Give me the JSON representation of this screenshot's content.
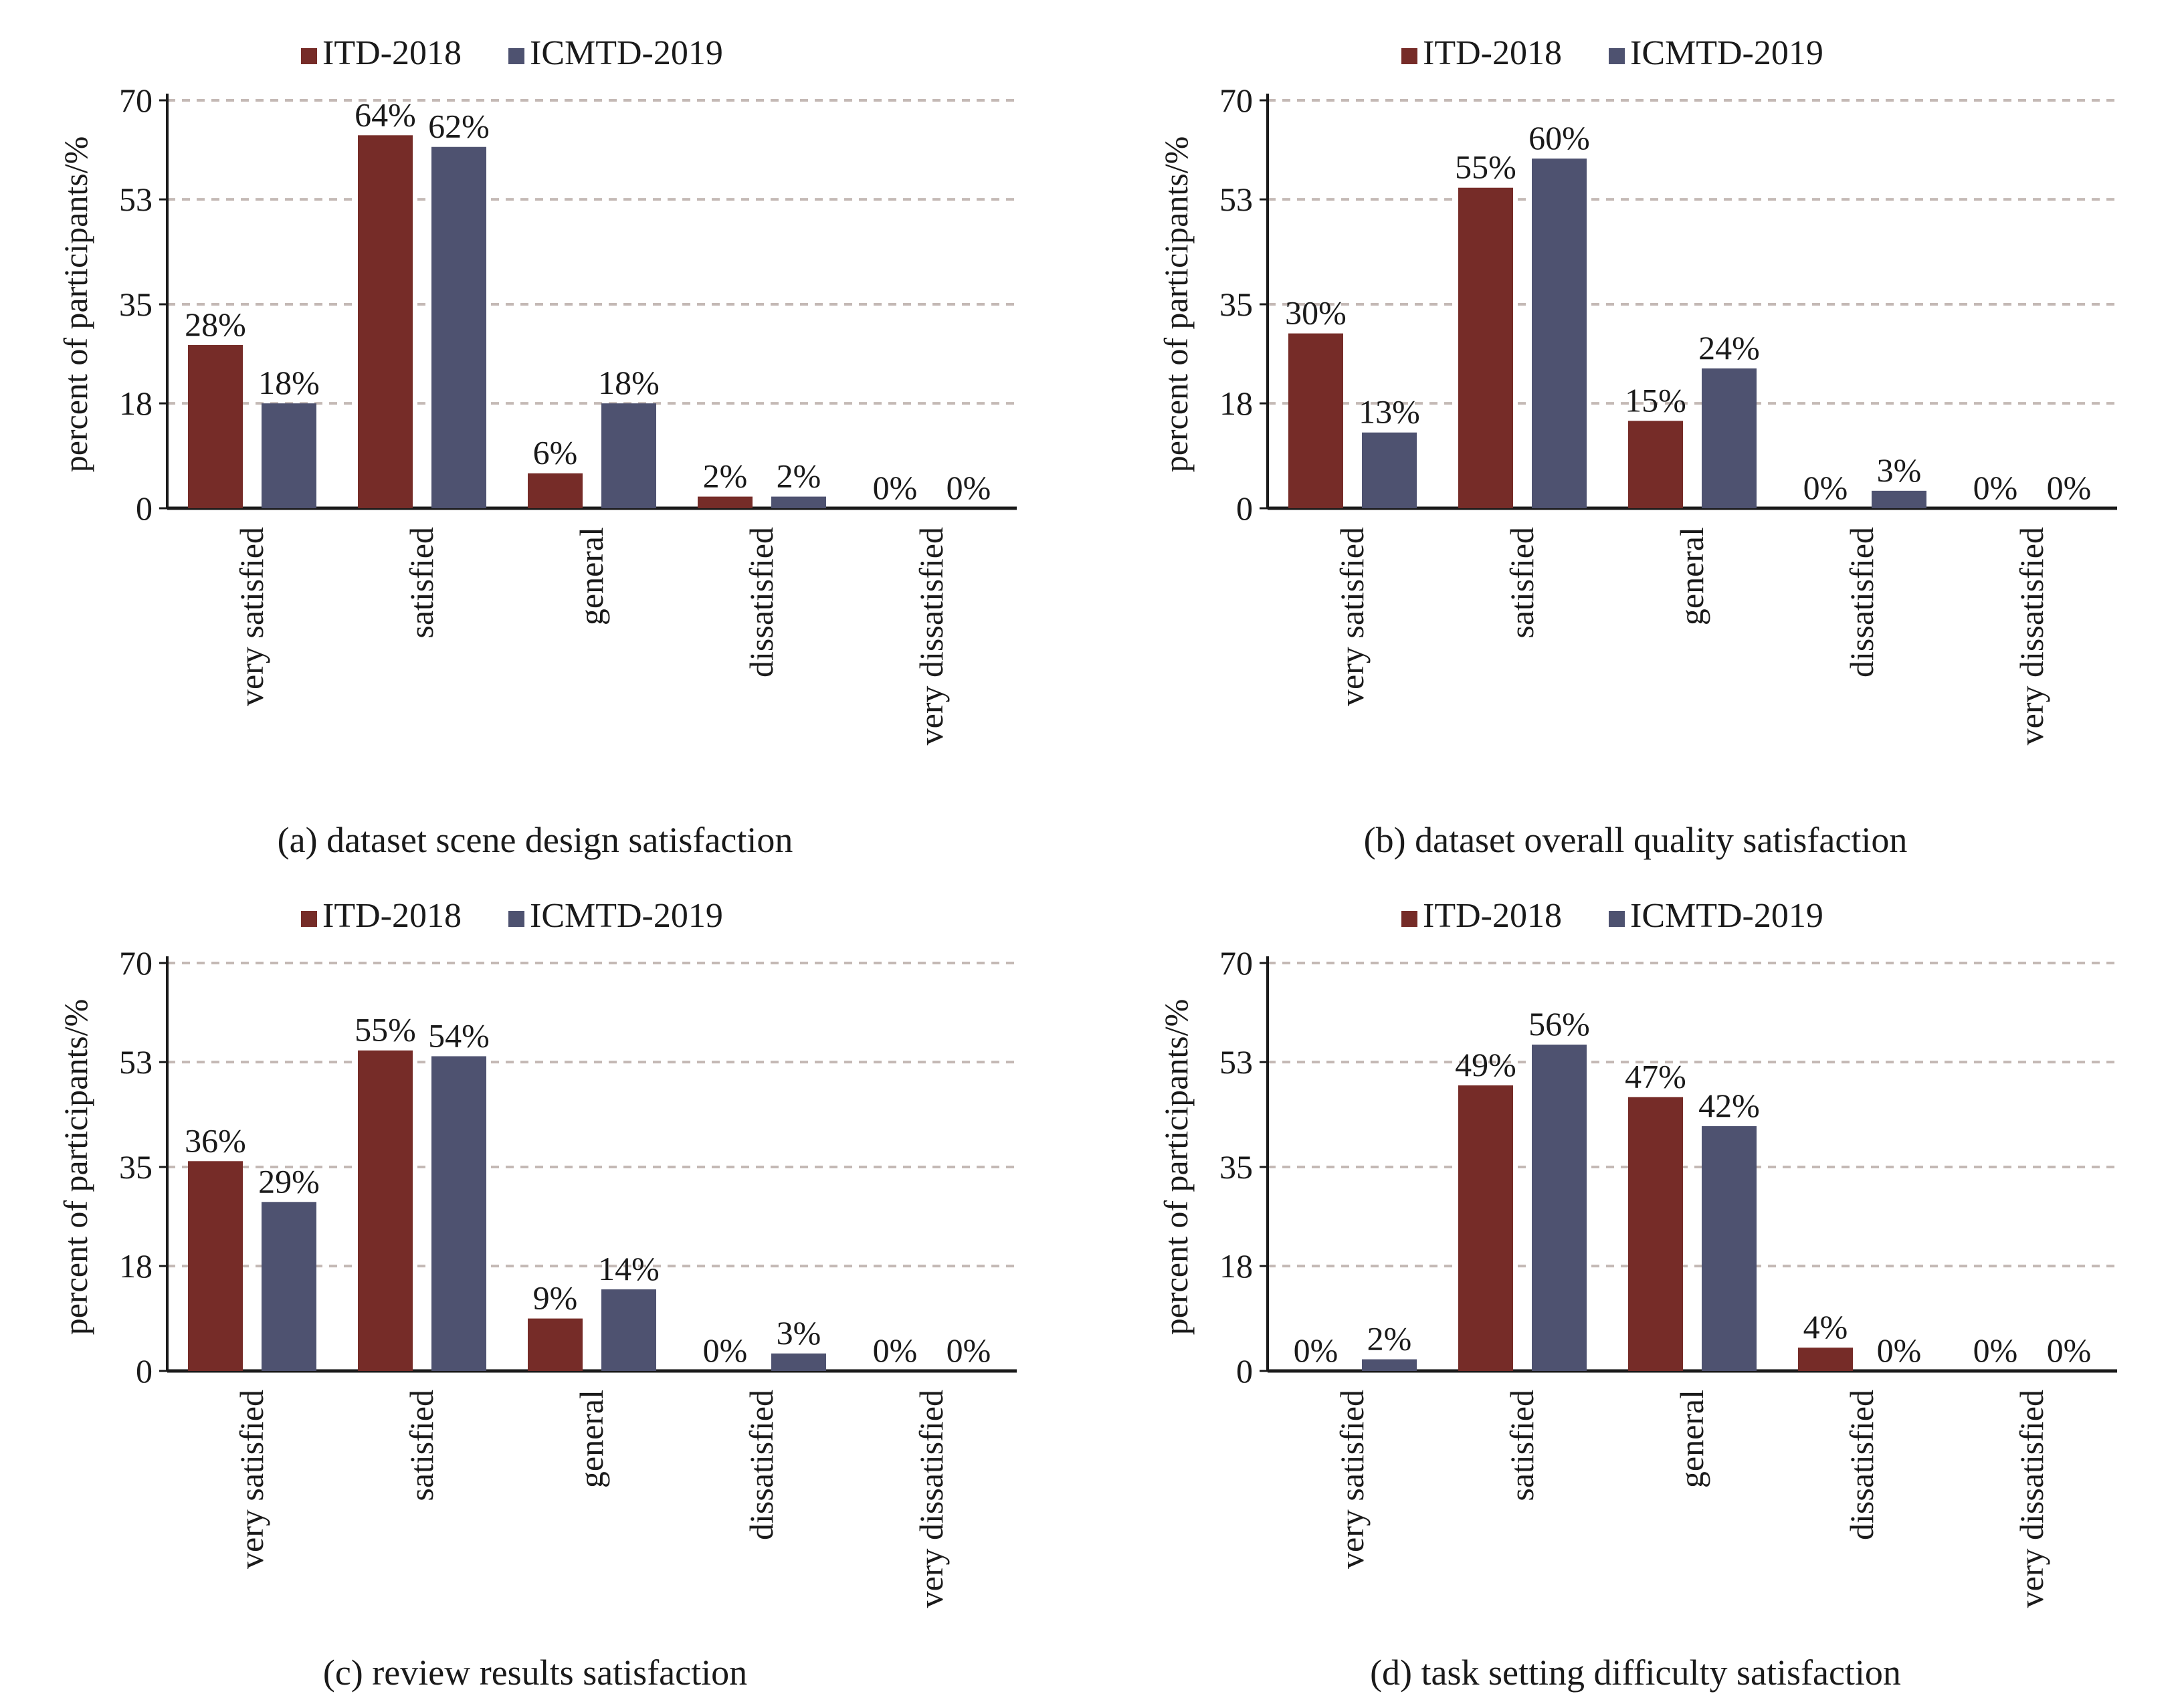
{
  "colors": {
    "itd": "#762c28",
    "icmtd": "#4e5270",
    "grid": "#c4b9b5",
    "axis": "#1a1a1a"
  },
  "legend_labels": [
    "ITD-2018",
    "ICMTD-2019"
  ],
  "chart_data": [
    {
      "type": "bar",
      "caption": "(a) dataset scene design satisfaction",
      "ylabel": "percent of participants/%",
      "yticks": [
        "0",
        "18",
        "35",
        "53",
        "70"
      ],
      "ylim": [
        0,
        70
      ],
      "grid": true,
      "legend": "top",
      "categories": [
        "very satisfied",
        "satisfied",
        "general",
        "dissatisfied",
        "very dissatisfied"
      ],
      "series": [
        {
          "name": "ITD-2018",
          "values": [
            28,
            64,
            6,
            2,
            0
          ],
          "labels": [
            "28%",
            "64%",
            "6%",
            "2%",
            "0%"
          ]
        },
        {
          "name": "ICMTD-2019",
          "values": [
            18,
            62,
            18,
            2,
            0
          ],
          "labels": [
            "18%",
            "62%",
            "18%",
            "2%",
            "0%"
          ]
        }
      ]
    },
    {
      "type": "bar",
      "caption": "(b) dataset overall quality satisfaction",
      "ylabel": "percent of participants/%",
      "yticks": [
        "0",
        "18",
        "35",
        "53",
        "70"
      ],
      "ylim": [
        0,
        70
      ],
      "grid": true,
      "legend": "top",
      "categories": [
        "very satisfied",
        "satisfied",
        "general",
        "dissatisfied",
        "very dissatisfied"
      ],
      "series": [
        {
          "name": "ITD-2018",
          "values": [
            30,
            55,
            15,
            0,
            0
          ],
          "labels": [
            "30%",
            "55%",
            "15%",
            "0%",
            "0%"
          ]
        },
        {
          "name": "ICMTD-2019",
          "values": [
            13,
            60,
            24,
            3,
            0
          ],
          "labels": [
            "13%",
            "60%",
            "24%",
            "3%",
            "0%"
          ]
        }
      ]
    },
    {
      "type": "bar",
      "caption": "(c) review results satisfaction",
      "ylabel": "percent of participants/%",
      "yticks": [
        "0",
        "18",
        "35",
        "53",
        "70"
      ],
      "ylim": [
        0,
        70
      ],
      "grid": true,
      "legend": "top",
      "categories": [
        "very satisfied",
        "satisfied",
        "general",
        "dissatisfied",
        "very dissatisfied"
      ],
      "series": [
        {
          "name": "ITD-2018",
          "values": [
            36,
            55,
            9,
            0,
            0
          ],
          "labels": [
            "36%",
            "55%",
            "9%",
            "0%",
            "0%"
          ]
        },
        {
          "name": "ICMTD-2019",
          "values": [
            29,
            54,
            14,
            3,
            0
          ],
          "labels": [
            "29%",
            "54%",
            "14%",
            "3%",
            "0%"
          ]
        }
      ]
    },
    {
      "type": "bar",
      "caption": "(d) task setting difficulty satisfaction",
      "ylabel": "percent of participants/%",
      "yticks": [
        "0",
        "18",
        "35",
        "53",
        "70"
      ],
      "ylim": [
        0,
        70
      ],
      "grid": true,
      "legend": "top",
      "categories": [
        "very satisfied",
        "satisfied",
        "general",
        "dissatisfied",
        "very dissatisfied"
      ],
      "series": [
        {
          "name": "ITD-2018",
          "values": [
            0,
            49,
            47,
            4,
            0
          ],
          "labels": [
            "0%",
            "49%",
            "47%",
            "4%",
            "0%"
          ]
        },
        {
          "name": "ICMTD-2019",
          "values": [
            2,
            56,
            42,
            0,
            0
          ],
          "labels": [
            "2%",
            "56%",
            "42%",
            "0%",
            "0%"
          ]
        }
      ]
    }
  ]
}
